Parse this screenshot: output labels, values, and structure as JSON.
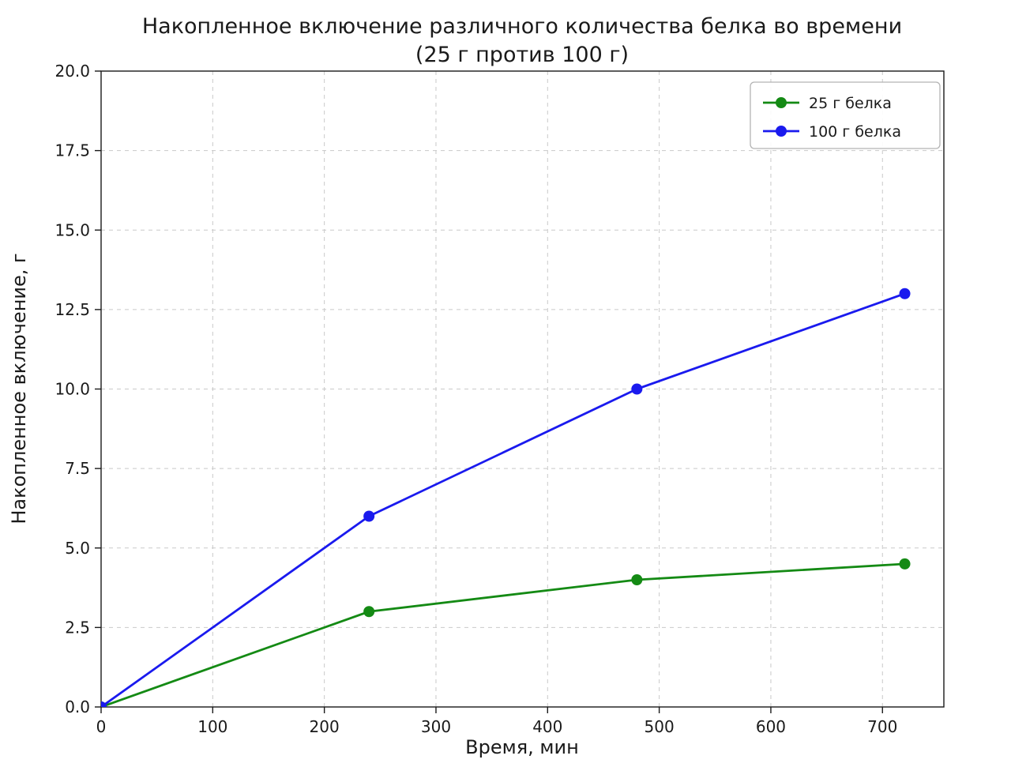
{
  "chart_data": {
    "type": "line",
    "title": "Накопленное включение различного количества белка во времени",
    "subtitle": "(25 г против 100 г)",
    "xlabel": "Время, мин",
    "ylabel": "Накопленное включение, г",
    "xlim": [
      0,
      755
    ],
    "ylim": [
      0,
      20
    ],
    "grid": true,
    "grid_style": "dashed",
    "legend_position": "top-right",
    "x_ticks": {
      "values": [
        0,
        100,
        200,
        300,
        400,
        500,
        600,
        700
      ],
      "labels": [
        "0",
        "100",
        "200",
        "300",
        "400",
        "500",
        "600",
        "700"
      ]
    },
    "y_ticks": {
      "values": [
        0,
        2.5,
        5,
        7.5,
        10,
        12.5,
        15,
        17.5,
        20
      ],
      "labels": [
        "0.0",
        "2.5",
        "5.0",
        "7.5",
        "10.0",
        "12.5",
        "15.0",
        "17.5",
        "20.0"
      ]
    },
    "x": [
      0,
      240,
      480,
      720
    ],
    "series": [
      {
        "name": "25 г белка",
        "color": "#148a14",
        "marker": "circle",
        "values": [
          0,
          3,
          4,
          4.5
        ]
      },
      {
        "name": "100 г белка",
        "color": "#1a1aee",
        "marker": "circle",
        "values": [
          0,
          6,
          10,
          13
        ]
      }
    ]
  }
}
